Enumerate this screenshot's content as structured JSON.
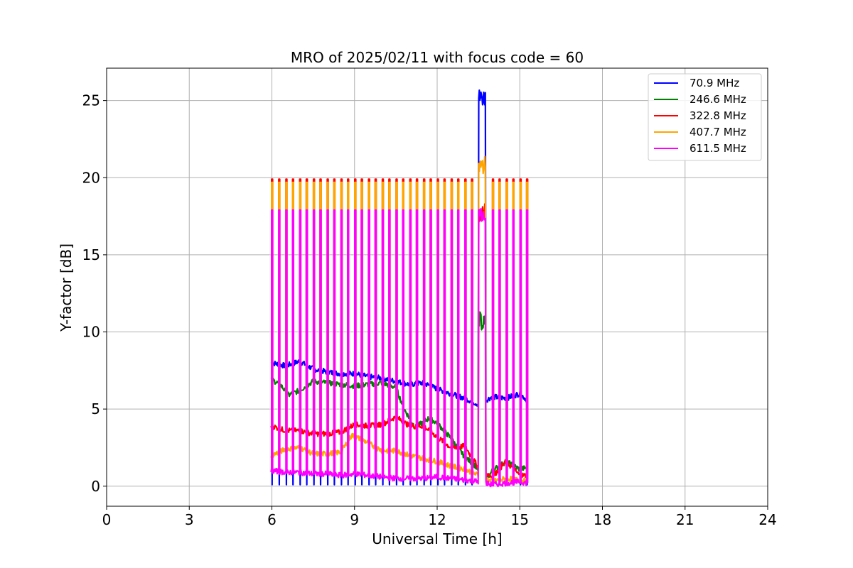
{
  "chart_data": {
    "type": "line",
    "title": "MRO of 2025/02/11 with focus code = 60",
    "xlabel": "Universal Time [h]",
    "ylabel": "Y-factor [dB]",
    "xlim": [
      0,
      24
    ],
    "ylim": [
      -1.3,
      27.1
    ],
    "xticks": [
      0,
      3,
      6,
      9,
      12,
      15,
      18,
      21,
      24
    ],
    "yticks": [
      0,
      5,
      10,
      15,
      20,
      25
    ],
    "grid": true,
    "legend_position": "top-right",
    "data_start": 5.97,
    "data_end": 15.25,
    "spike_interval_h": 0.25,
    "anomaly_start": 13.5,
    "anomaly_end": 13.75,
    "series": [
      {
        "name": " 70.9 MHz",
        "color": "#0000ff",
        "baseline": [
          [
            6.0,
            8.0
          ],
          [
            6.5,
            7.8
          ],
          [
            7.0,
            8.1
          ],
          [
            7.5,
            7.6
          ],
          [
            8.0,
            7.4
          ],
          [
            8.5,
            7.3
          ],
          [
            9.0,
            7.3
          ],
          [
            9.5,
            7.1
          ],
          [
            10.0,
            7.0
          ],
          [
            10.5,
            6.8
          ],
          [
            11.0,
            6.6
          ],
          [
            11.5,
            6.7
          ],
          [
            12.0,
            6.3
          ],
          [
            12.5,
            6.0
          ],
          [
            13.0,
            5.7
          ],
          [
            13.5,
            5.3
          ],
          [
            14.0,
            5.8
          ],
          [
            14.5,
            5.7
          ],
          [
            15.0,
            6.0
          ],
          [
            15.25,
            5.6
          ]
        ],
        "spike_low": 0.1,
        "spike_high": null,
        "anomaly_max": 25.8
      },
      {
        "name": " 246.6 MHz",
        "color": "#008000",
        "baseline": [
          [
            6.0,
            6.9
          ],
          [
            6.3,
            6.6
          ],
          [
            6.6,
            5.9
          ],
          [
            7.0,
            6.2
          ],
          [
            7.5,
            6.8
          ],
          [
            8.0,
            6.7
          ],
          [
            8.5,
            6.6
          ],
          [
            9.0,
            6.5
          ],
          [
            9.5,
            6.6
          ],
          [
            10.0,
            6.7
          ],
          [
            10.5,
            6.4
          ],
          [
            10.8,
            5.0
          ],
          [
            11.2,
            3.8
          ],
          [
            11.7,
            4.4
          ],
          [
            12.0,
            4.1
          ],
          [
            12.5,
            3.1
          ],
          [
            13.0,
            1.9
          ],
          [
            13.4,
            1.3
          ],
          [
            13.75,
            0.3
          ],
          [
            14.0,
            1.0
          ],
          [
            14.5,
            1.6
          ],
          [
            15.0,
            1.1
          ],
          [
            15.25,
            1.2
          ]
        ],
        "spike_low": null,
        "spike_high": null,
        "anomaly_max": 11.3
      },
      {
        "name": " 322.8 MHz",
        "color": "#ff0000",
        "baseline": [
          [
            6.0,
            3.9
          ],
          [
            6.5,
            3.6
          ],
          [
            7.0,
            3.6
          ],
          [
            7.5,
            3.4
          ],
          [
            8.0,
            3.4
          ],
          [
            8.5,
            3.5
          ],
          [
            9.0,
            4.0
          ],
          [
            9.5,
            3.9
          ],
          [
            10.0,
            4.0
          ],
          [
            10.5,
            4.5
          ],
          [
            11.0,
            3.9
          ],
          [
            11.5,
            3.9
          ],
          [
            12.0,
            3.2
          ],
          [
            12.5,
            2.5
          ],
          [
            13.0,
            2.6
          ],
          [
            13.5,
            1.2
          ],
          [
            14.0,
            0.6
          ],
          [
            14.5,
            1.6
          ],
          [
            15.0,
            0.7
          ],
          [
            15.25,
            0.7
          ]
        ],
        "spike_low": null,
        "spike_high": 19.9,
        "anomaly_max": 18.3
      },
      {
        "name": " 407.7 MHz",
        "color": "#ffa500",
        "baseline": [
          [
            6.0,
            2.0
          ],
          [
            6.5,
            2.4
          ],
          [
            7.0,
            2.5
          ],
          [
            7.5,
            2.1
          ],
          [
            8.0,
            2.1
          ],
          [
            8.5,
            2.2
          ],
          [
            8.9,
            3.3
          ],
          [
            9.3,
            3.0
          ],
          [
            9.7,
            2.6
          ],
          [
            10.0,
            2.3
          ],
          [
            10.5,
            2.3
          ],
          [
            11.0,
            2.0
          ],
          [
            11.5,
            1.8
          ],
          [
            12.0,
            1.6
          ],
          [
            12.5,
            1.3
          ],
          [
            13.0,
            1.1
          ],
          [
            13.5,
            0.7
          ],
          [
            14.0,
            0.3
          ],
          [
            14.5,
            0.5
          ],
          [
            15.0,
            0.4
          ],
          [
            15.25,
            0.3
          ]
        ],
        "spike_low": null,
        "spike_high": 19.7,
        "anomaly_max": 21.4
      },
      {
        "name": " 611.5 MHz",
        "color": "#ff00ff",
        "baseline": [
          [
            6.0,
            1.0
          ],
          [
            6.5,
            0.9
          ],
          [
            7.0,
            0.9
          ],
          [
            7.5,
            0.8
          ],
          [
            8.0,
            0.8
          ],
          [
            8.5,
            0.7
          ],
          [
            9.0,
            0.8
          ],
          [
            9.5,
            0.7
          ],
          [
            10.0,
            0.6
          ],
          [
            10.5,
            0.5
          ],
          [
            11.0,
            0.5
          ],
          [
            11.5,
            0.5
          ],
          [
            12.0,
            0.6
          ],
          [
            12.5,
            0.5
          ],
          [
            13.0,
            0.4
          ],
          [
            13.5,
            0.3
          ],
          [
            14.0,
            0.1
          ],
          [
            14.5,
            0.2
          ],
          [
            15.0,
            0.3
          ],
          [
            15.25,
            0.2
          ]
        ],
        "spike_low": null,
        "spike_high": 17.9,
        "anomaly_max": 18.3
      }
    ]
  }
}
